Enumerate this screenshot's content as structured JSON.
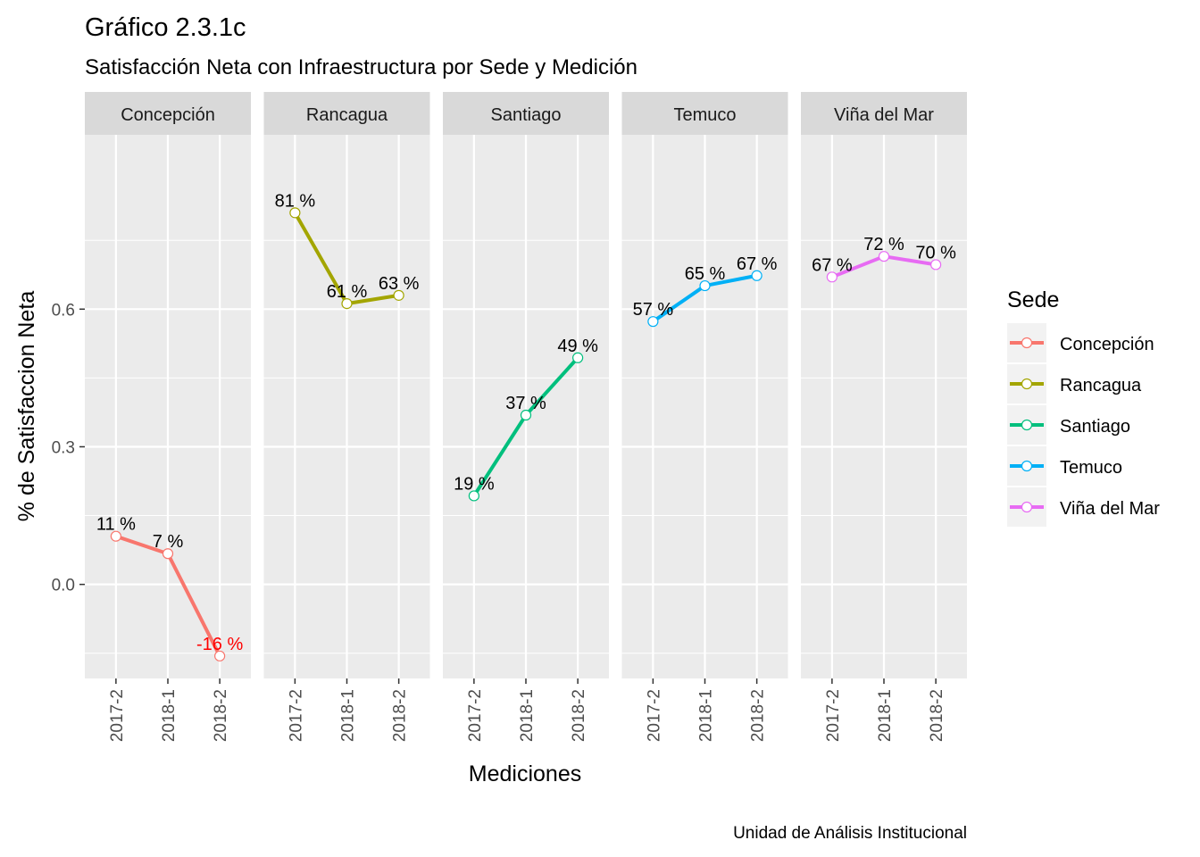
{
  "chart_data": {
    "type": "line",
    "title": "Gráfico 2.3.1c",
    "subtitle": "Satisfacción Neta con Infraestructura por Sede y Medición",
    "xlabel": "Mediciones",
    "ylabel": "% de Satisfaccion Neta",
    "caption": "Unidad de Análisis Institucional",
    "categories": [
      "2017-2",
      "2018-1",
      "2018-2"
    ],
    "ylim": [
      -0.205,
      0.98
    ],
    "yticks": [
      0.0,
      0.3,
      0.6
    ],
    "ytick_labels": [
      "0.0",
      "0.3",
      "0.6"
    ],
    "grid": true,
    "legend": {
      "title": "Sede",
      "position": "right",
      "entries": [
        "Concepción",
        "Rancagua",
        "Santiago",
        "Temuco",
        "Viña del Mar"
      ]
    },
    "negative_label_color": "#FF0000",
    "series": [
      {
        "name": "Concepción",
        "color": "#F8766D",
        "values": [
          0.105,
          0.067,
          -0.156
        ],
        "labels": [
          "11 %",
          "7 %",
          "-16 %"
        ]
      },
      {
        "name": "Rancagua",
        "color": "#A3A500",
        "values": [
          0.81,
          0.612,
          0.63
        ],
        "labels": [
          "81 %",
          "61 %",
          "63 %"
        ]
      },
      {
        "name": "Santiago",
        "color": "#00BF7D",
        "values": [
          0.193,
          0.369,
          0.494
        ],
        "labels": [
          "19 %",
          "37 %",
          "49 %"
        ]
      },
      {
        "name": "Temuco",
        "color": "#00B0F6",
        "values": [
          0.573,
          0.651,
          0.673
        ],
        "labels": [
          "57 %",
          "65 %",
          "67 %"
        ]
      },
      {
        "name": "Viña del Mar",
        "color": "#E76BF3",
        "values": [
          0.67,
          0.715,
          0.697
        ],
        "labels": [
          "67 %",
          "72 %",
          "70 %"
        ]
      }
    ]
  }
}
